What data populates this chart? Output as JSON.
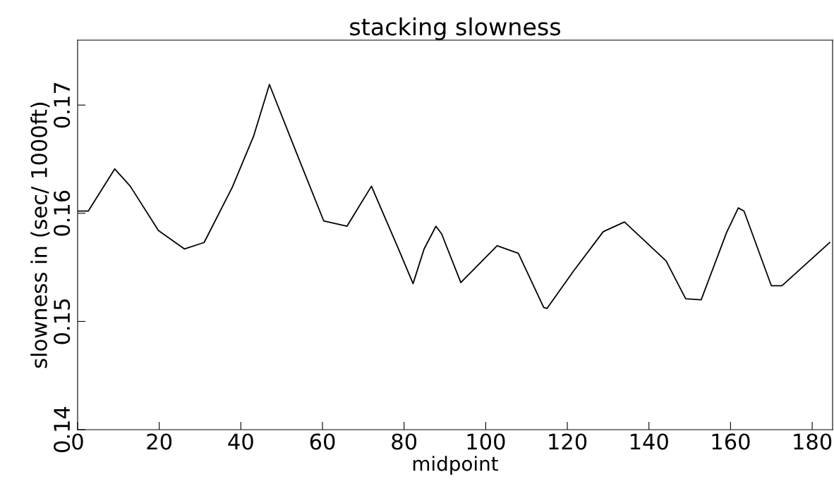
{
  "chart_data": {
    "type": "line",
    "title": "stacking slowness",
    "xlabel": "midpoint",
    "ylabel": "slowness in (sec/ 1000ft)",
    "x": [
      0,
      2.6,
      9.1,
      12.9,
      19.8,
      26.2,
      31,
      37.9,
      43.1,
      47,
      53.4,
      60.3,
      66,
      72,
      78.4,
      82.2,
      84.9,
      87.8,
      89.2,
      93.9,
      102.8,
      108,
      114.2,
      115,
      121.4,
      128.8,
      134,
      144.2,
      149,
      152.8,
      159,
      161.9,
      163.3,
      170,
      172.6,
      184.3
    ],
    "series": [
      {
        "color": "#000000",
        "values": [
          0.1602,
          0.1602,
          0.1641,
          0.1625,
          0.1584,
          0.1567,
          0.1573,
          0.1624,
          0.1671,
          0.1719,
          0.1658,
          0.1593,
          0.1588,
          0.1625,
          0.1569,
          0.1535,
          0.1567,
          0.1588,
          0.1581,
          0.1536,
          0.157,
          0.1563,
          0.1513,
          0.1512,
          0.1546,
          0.1583,
          0.1592,
          0.1556,
          0.1521,
          0.152,
          0.1582,
          0.1605,
          0.1602,
          0.1533,
          0.1533,
          0.1573
        ]
      }
    ],
    "xlim": [
      0,
      185
    ],
    "ylim": [
      0.14,
      0.176
    ],
    "xticks": [
      0,
      20,
      40,
      60,
      80,
      100,
      120,
      140,
      160,
      180
    ],
    "yticks": [
      {
        "value": 0.14,
        "label": "0.14"
      },
      {
        "value": 0.15,
        "label": "0.15"
      },
      {
        "value": 0.16,
        "label": "0.16"
      },
      {
        "value": 0.17,
        "label": "0.17"
      }
    ],
    "grid": false,
    "legend": false,
    "marker": "none",
    "line_style": "solid"
  }
}
